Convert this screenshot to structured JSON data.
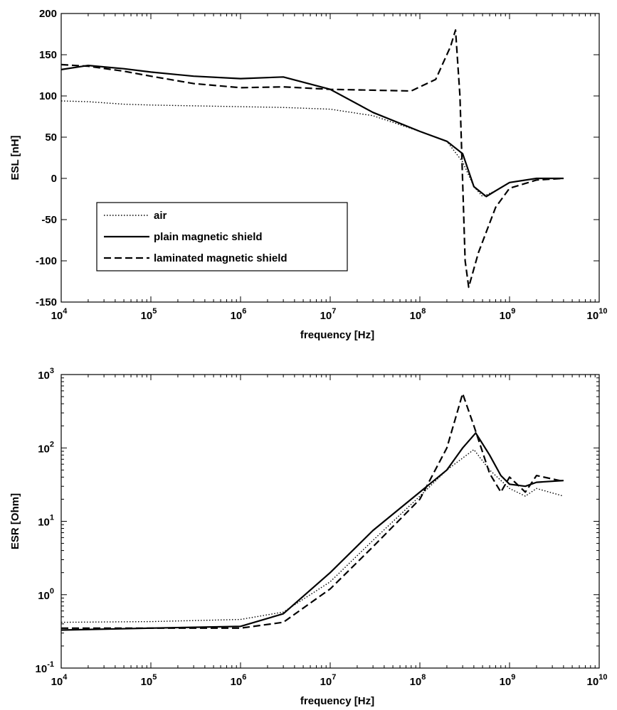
{
  "chart_data": [
    {
      "type": "line",
      "xlabel": "frequency [Hz]",
      "ylabel": "ESL [nH]",
      "x_scale": "log",
      "y_scale": "linear",
      "xlim": [
        10000,
        10000000000
      ],
      "ylim": [
        -150,
        200
      ],
      "x_ticks": [
        {
          "base": "10",
          "exp": "4"
        },
        {
          "base": "10",
          "exp": "5"
        },
        {
          "base": "10",
          "exp": "6"
        },
        {
          "base": "10",
          "exp": "7"
        },
        {
          "base": "10",
          "exp": "8"
        },
        {
          "base": "10",
          "exp": "9"
        },
        {
          "base": "10",
          "exp": "10"
        }
      ],
      "y_ticks": [
        "-150",
        "-100",
        "-50",
        "0",
        "50",
        "100",
        "150",
        "200"
      ],
      "y_tick_values": [
        -150,
        -100,
        -50,
        0,
        50,
        100,
        150,
        200
      ],
      "grid": false,
      "legend_position": "bottom-left",
      "series": [
        {
          "name": "air",
          "style": "dotted",
          "x": [
            10000,
            20000,
            50000,
            100000,
            300000,
            1000000,
            3000000,
            10000000,
            30000000,
            100000000,
            200000000,
            300000000,
            400000000,
            500000000,
            700000000,
            1000000000,
            2000000000,
            4000000000
          ],
          "y": [
            94,
            93,
            90,
            89,
            88,
            87,
            86,
            84,
            76,
            57,
            45,
            20,
            -10,
            -22,
            -15,
            -5,
            0,
            0
          ]
        },
        {
          "name": "plain magnetic shield",
          "style": "solid",
          "x": [
            10000,
            20000,
            50000,
            100000,
            300000,
            1000000,
            3000000,
            10000000,
            30000000,
            100000000,
            200000000,
            300000000,
            400000000,
            550000000,
            700000000,
            1000000000,
            2000000000,
            4000000000
          ],
          "y": [
            132,
            137,
            133,
            129,
            124,
            121,
            123,
            108,
            80,
            57,
            45,
            30,
            -10,
            -22,
            -15,
            -5,
            0,
            0
          ]
        },
        {
          "name": "laminated magnetic shield",
          "style": "dashed",
          "x": [
            10000,
            20000,
            50000,
            100000,
            300000,
            1000000,
            3000000,
            10000000,
            30000000,
            80000000,
            150000000,
            220000000,
            250000000,
            280000000,
            320000000,
            350000000,
            450000000,
            700000000,
            1000000000,
            2000000000,
            4000000000
          ],
          "y": [
            138,
            136,
            130,
            124,
            115,
            110,
            111,
            108,
            107,
            106,
            120,
            160,
            180,
            100,
            -100,
            -132,
            -90,
            -35,
            -12,
            -2,
            0
          ]
        }
      ]
    },
    {
      "type": "line",
      "xlabel": "frequency [Hz]",
      "ylabel": "ESR [Ohm]",
      "x_scale": "log",
      "y_scale": "log",
      "xlim": [
        10000,
        10000000000
      ],
      "ylim": [
        0.1,
        1000
      ],
      "x_ticks": [
        {
          "base": "10",
          "exp": "4"
        },
        {
          "base": "10",
          "exp": "5"
        },
        {
          "base": "10",
          "exp": "6"
        },
        {
          "base": "10",
          "exp": "7"
        },
        {
          "base": "10",
          "exp": "8"
        },
        {
          "base": "10",
          "exp": "9"
        },
        {
          "base": "10",
          "exp": "10"
        }
      ],
      "y_ticks": [
        {
          "base": "10",
          "exp": "-1"
        },
        {
          "base": "10",
          "exp": "0"
        },
        {
          "base": "10",
          "exp": "1"
        },
        {
          "base": "10",
          "exp": "2"
        },
        {
          "base": "10",
          "exp": "3"
        }
      ],
      "y_tick_values": [
        0.1,
        1,
        10,
        100,
        1000
      ],
      "grid": false,
      "series": [
        {
          "name": "air",
          "style": "dotted",
          "x": [
            10000,
            100000,
            1000000,
            3000000,
            10000000,
            30000000,
            100000000,
            200000000,
            400000000,
            600000000,
            1000000000,
            1500000000,
            2000000000,
            4000000000
          ],
          "y": [
            0.42,
            0.43,
            0.46,
            0.58,
            1.5,
            5.5,
            22,
            50,
            95,
            50,
            28,
            22,
            28,
            22
          ]
        },
        {
          "name": "plain magnetic shield",
          "style": "solid",
          "x": [
            10000,
            100000,
            1000000,
            3000000,
            10000000,
            30000000,
            100000000,
            200000000,
            300000000,
            420000000,
            600000000,
            800000000,
            1000000000,
            1500000000,
            2000000000,
            4000000000
          ],
          "y": [
            0.33,
            0.35,
            0.37,
            0.55,
            2,
            7.5,
            25,
            50,
            100,
            160,
            80,
            42,
            32,
            30,
            34,
            36
          ]
        },
        {
          "name": "laminated magnetic shield",
          "style": "dashed",
          "x": [
            10000,
            100000,
            1000000,
            3000000,
            10000000,
            30000000,
            100000000,
            200000000,
            300000000,
            400000000,
            600000000,
            800000000,
            1000000000,
            1500000000,
            2000000000,
            4000000000
          ],
          "y": [
            0.35,
            0.35,
            0.35,
            0.42,
            1.2,
            4.5,
            20,
            100,
            550,
            200,
            45,
            25,
            40,
            25,
            42,
            35
          ]
        }
      ]
    }
  ]
}
